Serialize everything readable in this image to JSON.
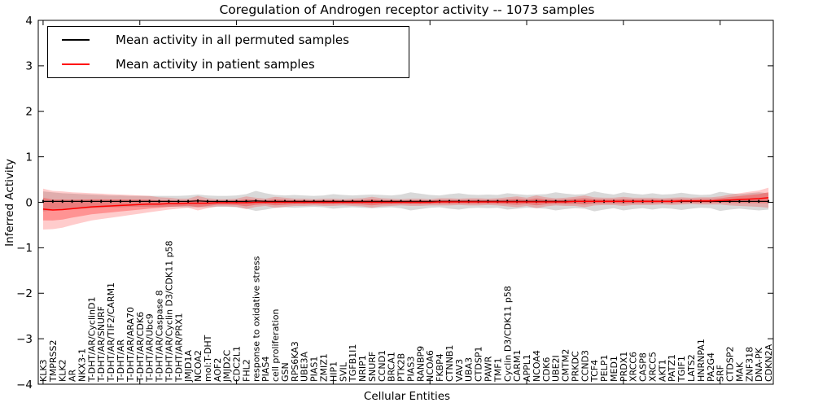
{
  "chart_data": {
    "type": "line",
    "title": "Coregulation of Androgen receptor activity -- 1073 samples",
    "xlabel": "Cellular Entities",
    "ylabel": "Inferred Activity",
    "ylim": [
      -4,
      4
    ],
    "yticks": [
      -4,
      -3,
      -2,
      -1,
      0,
      1,
      2,
      3,
      4
    ],
    "xtick_interval": 10,
    "grid": false,
    "legend_position": "upper left",
    "categories": [
      "KLK3",
      "TMPRSS2",
      "KLK2",
      "AR",
      "NKX3-1",
      "T-DHT/AR/CyclinD1",
      "T-DHT/AR/SNURF",
      "T-DHT/AR/TIF2/CARM1",
      "T-DHT/AR",
      "T-DHT/AR/ARA70",
      "T-DHT/AR/CDK6",
      "T-DHT/AR/Ubc9",
      "T-DHT/AR/Caspase 8",
      "T-DHT/AR/Cyclin D3/CDK11 p58",
      "T-DHT/AR/PRX1",
      "JMJD1A",
      "NCOA2",
      "mol:T-DHT",
      "AOF2",
      "JMJD2C",
      "CDC2L1",
      "FHL2",
      "response to oxidative stress",
      "PIAS4",
      "cell proliferation",
      "GSN",
      "RPS6KA3",
      "UBE3A",
      "PIAS1",
      "ZMIZ1",
      "HIP1",
      "SVIL",
      "TGFB1I1",
      "NRIP1",
      "SNURF",
      "CCND1",
      "BRCA1",
      "PTK2B",
      "PIAS3",
      "RANBP9",
      "NCOA6",
      "FKBP4",
      "CTNNB1",
      "VAV3",
      "UBA3",
      "CTDSP1",
      "PAWR",
      "TMF1",
      "Cyclin D3/CDK11 p58",
      "CARM1",
      "APPL1",
      "NCOA4",
      "CDK6",
      "UBE2I",
      "CMTM2",
      "PRKDC",
      "CCND3",
      "TCF4",
      "PELP1",
      "MED1",
      "PRDX1",
      "XRCC6",
      "CASP8",
      "XRCC5",
      "AKT1",
      "PATZ1",
      "TGIF1",
      "LATS2",
      "HNRNPA1",
      "PA2G4",
      "SRF",
      "CTDSP2",
      "MAK",
      "ZNF318",
      "DNA-PK",
      "CDKN2A"
    ],
    "series": [
      {
        "name": "Mean activity in all permuted samples",
        "color": "#000000",
        "values": [
          0.02,
          0.02,
          0.02,
          0.02,
          0.02,
          0.02,
          0.02,
          0.02,
          0.02,
          0.02,
          0.02,
          0.02,
          0.02,
          0.02,
          0.02,
          0.02,
          0.03,
          0.02,
          0.02,
          0.02,
          0.02,
          0.02,
          0.03,
          0.02,
          0.02,
          0.02,
          0.02,
          0.02,
          0.02,
          0.02,
          0.02,
          0.02,
          0.02,
          0.02,
          0.02,
          0.02,
          0.02,
          0.02,
          0.02,
          0.02,
          0.02,
          0.02,
          0.02,
          0.02,
          0.02,
          0.02,
          0.02,
          0.02,
          0.02,
          0.02,
          0.02,
          0.02,
          0.02,
          0.02,
          0.02,
          0.02,
          0.02,
          0.02,
          0.02,
          0.02,
          0.02,
          0.02,
          0.02,
          0.02,
          0.02,
          0.02,
          0.02,
          0.02,
          0.02,
          0.02,
          0.02,
          0.02,
          0.02,
          0.02,
          0.02,
          0.02
        ],
        "band_std": [
          0.22,
          0.2,
          0.18,
          0.17,
          0.16,
          0.15,
          0.14,
          0.13,
          0.13,
          0.12,
          0.12,
          0.12,
          0.12,
          0.12,
          0.12,
          0.13,
          0.14,
          0.13,
          0.12,
          0.12,
          0.13,
          0.16,
          0.22,
          0.18,
          0.14,
          0.13,
          0.14,
          0.13,
          0.12,
          0.13,
          0.16,
          0.14,
          0.13,
          0.14,
          0.15,
          0.14,
          0.13,
          0.15,
          0.2,
          0.17,
          0.14,
          0.13,
          0.16,
          0.18,
          0.15,
          0.14,
          0.15,
          0.14,
          0.18,
          0.16,
          0.14,
          0.15,
          0.16,
          0.2,
          0.17,
          0.15,
          0.16,
          0.22,
          0.18,
          0.15,
          0.2,
          0.17,
          0.15,
          0.18,
          0.15,
          0.16,
          0.19,
          0.16,
          0.14,
          0.15,
          0.21,
          0.18,
          0.16,
          0.18,
          0.2,
          0.18
        ]
      },
      {
        "name": "Mean activity in patient samples",
        "color": "#ff0000",
        "values": [
          -0.15,
          -0.17,
          -0.16,
          -0.14,
          -0.12,
          -0.1,
          -0.09,
          -0.08,
          -0.07,
          -0.06,
          -0.05,
          -0.04,
          -0.04,
          -0.03,
          -0.03,
          -0.02,
          -0.02,
          -0.02,
          -0.01,
          -0.01,
          -0.01,
          -0.01,
          0.0,
          0.0,
          0.0,
          0.0,
          0.0,
          0.0,
          0.0,
          0.0,
          0.0,
          0.0,
          0.0,
          0.0,
          0.0,
          0.0,
          0.0,
          0.0,
          0.0,
          0.0,
          0.0,
          0.01,
          0.01,
          0.01,
          0.01,
          0.01,
          0.01,
          0.01,
          0.01,
          0.01,
          0.01,
          0.01,
          0.01,
          0.01,
          0.01,
          0.02,
          0.02,
          0.02,
          0.02,
          0.02,
          0.02,
          0.02,
          0.02,
          0.02,
          0.02,
          0.02,
          0.03,
          0.03,
          0.03,
          0.03,
          0.04,
          0.05,
          0.06,
          0.07,
          0.08,
          0.1
        ],
        "band_std": [
          0.45,
          0.42,
          0.4,
          0.36,
          0.33,
          0.3,
          0.28,
          0.26,
          0.24,
          0.22,
          0.2,
          0.18,
          0.15,
          0.13,
          0.11,
          0.1,
          0.16,
          0.11,
          0.08,
          0.08,
          0.09,
          0.14,
          0.1,
          0.08,
          0.12,
          0.1,
          0.08,
          0.08,
          0.07,
          0.08,
          0.08,
          0.07,
          0.08,
          0.09,
          0.12,
          0.09,
          0.08,
          0.07,
          0.08,
          0.08,
          0.07,
          0.08,
          0.08,
          0.07,
          0.08,
          0.08,
          0.07,
          0.08,
          0.1,
          0.12,
          0.09,
          0.14,
          0.1,
          0.08,
          0.09,
          0.1,
          0.13,
          0.09,
          0.08,
          0.08,
          0.1,
          0.08,
          0.08,
          0.08,
          0.07,
          0.08,
          0.08,
          0.07,
          0.08,
          0.08,
          0.09,
          0.12,
          0.14,
          0.16,
          0.18,
          0.22
        ]
      }
    ]
  }
}
